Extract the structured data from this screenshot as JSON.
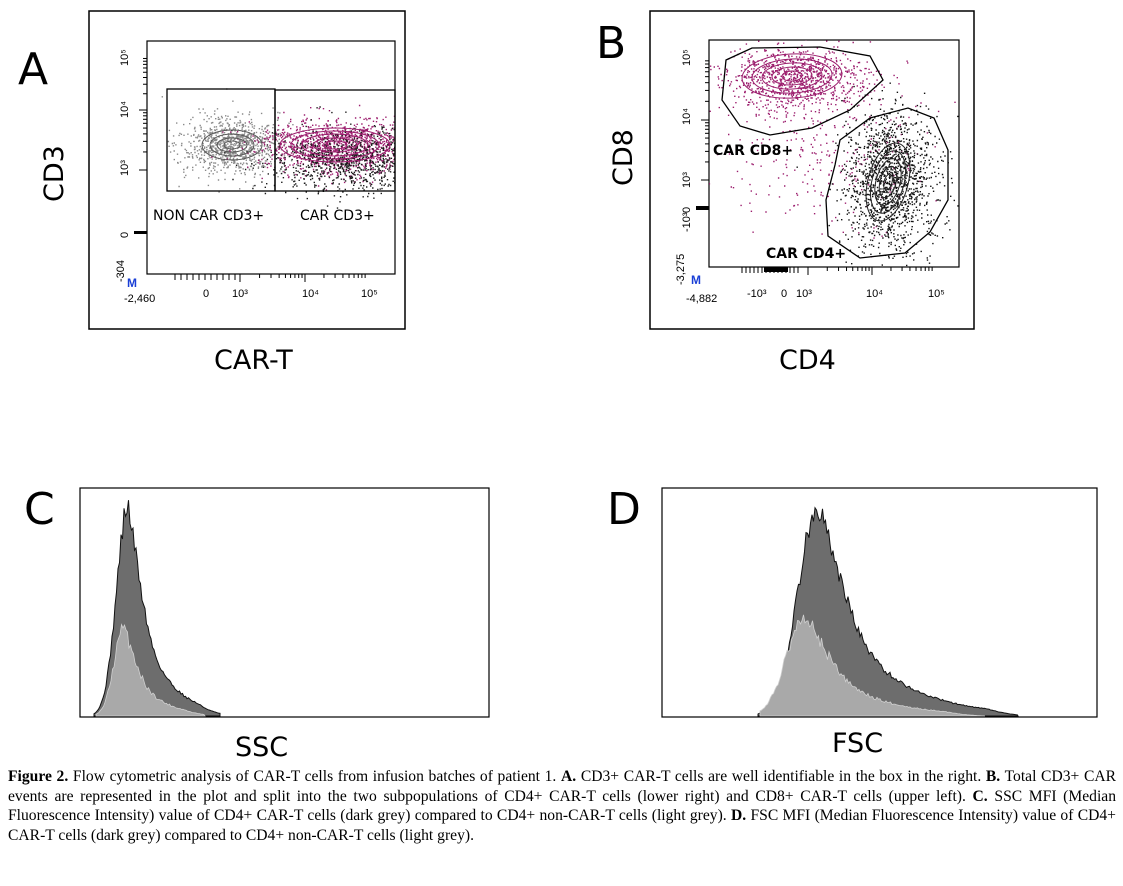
{
  "panels": {
    "A": {
      "letter": "A",
      "x_axis_label": "CAR-T",
      "y_axis_label": "CD3",
      "x_min_label": "-2,460",
      "y_min_label": "-304",
      "x_ticks": [
        "0",
        "10³",
        "10⁴",
        "10⁵"
      ],
      "y_ticks": [
        "0",
        "10³",
        "10⁴",
        "10⁵"
      ],
      "marker": "M",
      "gate_left_label": "NON CAR CD3+",
      "gate_right_label": "CAR CD3+"
    },
    "B": {
      "letter": "B",
      "x_axis_label": "CD4",
      "y_axis_label": "CD8",
      "x_min_label": "-4,882",
      "y_min_label": "-3,275",
      "x_ticks": [
        "-10³",
        "0",
        "10³",
        "10⁴",
        "10⁵"
      ],
      "y_ticks": [
        "-10³",
        "0",
        "10³",
        "10⁴",
        "10⁵"
      ],
      "marker": "M",
      "gate_upper_label": "CAR CD8+",
      "gate_lower_label": "CAR CD4+"
    },
    "C": {
      "letter": "C",
      "x_axis_label": "SSC"
    },
    "D": {
      "letter": "D",
      "x_axis_label": "FSC"
    }
  },
  "colors": {
    "car_events": "#9c1e6e",
    "non_car_events": "#8a8a8a",
    "dark_grey_hist": "#6d6d6d",
    "light_grey_hist": "#a9a9a9",
    "marker_blue": "#1a3fd6"
  },
  "caption": {
    "figure_label": "Figure 2.",
    "intro": "Flow cytometric analysis of CAR-T cells from infusion batches of patient 1.",
    "a_label": "A.",
    "a_text": "CD3+ CAR-T cells are well identifiable in the box in the right.",
    "b_label": "B.",
    "b_text": "Total CD3+ CAR events are represented in the plot and split into the two subpopulations of CD4+ CAR-T cells (lower right) and CD8+ CAR-T cells (upper left).",
    "c_label": "C.",
    "c_text": "SSC MFI (Median Fluorescence Intensity) value of CD4+ CAR-T cells (dark grey) compared to CD4+ non-CAR-T cells (light grey).",
    "d_label": "D.",
    "d_text": "FSC MFI (Median Fluorescence Intensity) value of CD4+ CAR-T cells (dark grey) compared to CD4+ non-CAR-T cells (light grey)."
  }
}
